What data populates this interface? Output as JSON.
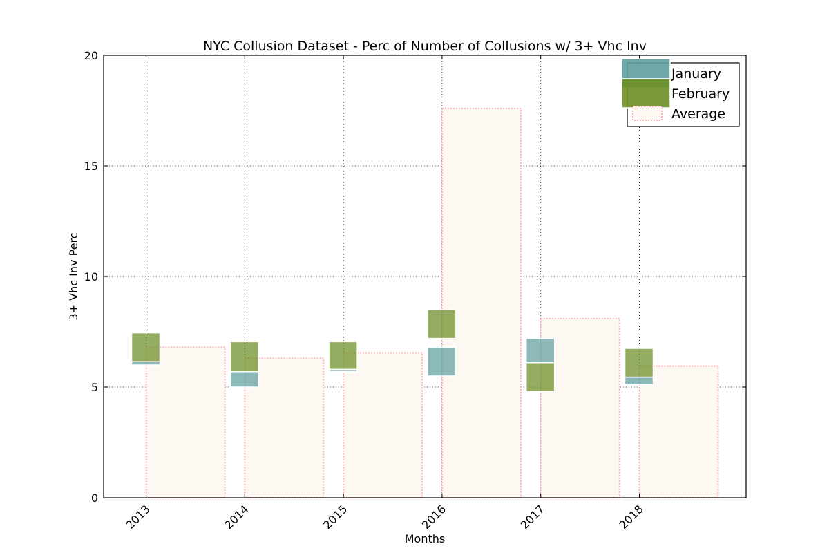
{
  "chart_data": {
    "type": "bar",
    "title": "NYC Collusion Dataset - Perc of Number of Collusions w/ 3+ Vhc Inv",
    "xlabel": "Months",
    "ylabel": "3+ Vhc Inv Perc",
    "categories": [
      "2013",
      "2014",
      "2015",
      "2016",
      "2017",
      "2018"
    ],
    "ylim": [
      0,
      20
    ],
    "yticks": [
      "0",
      "5",
      "10",
      "15",
      "20"
    ],
    "grid": true,
    "legend_position": "top-right",
    "series": [
      {
        "name": "January",
        "kind": "floating-box",
        "bottom": [
          6.0,
          5.0,
          5.7,
          5.5,
          6.1,
          5.1
        ],
        "top": [
          6.15,
          5.7,
          5.8,
          6.8,
          7.2,
          5.45
        ],
        "color": "#5f9ea0"
      },
      {
        "name": "February",
        "kind": "floating-box",
        "bottom": [
          6.15,
          5.7,
          5.8,
          7.2,
          4.8,
          5.45
        ],
        "top": [
          7.45,
          7.05,
          7.05,
          8.5,
          6.1,
          6.75
        ],
        "color": "#6b8e23"
      },
      {
        "name": "Average",
        "kind": "bar",
        "values": [
          6.8,
          6.3,
          6.55,
          17.6,
          8.1,
          5.95
        ],
        "color": "#ffb6c1",
        "fill": "#fdf8f2"
      }
    ]
  }
}
